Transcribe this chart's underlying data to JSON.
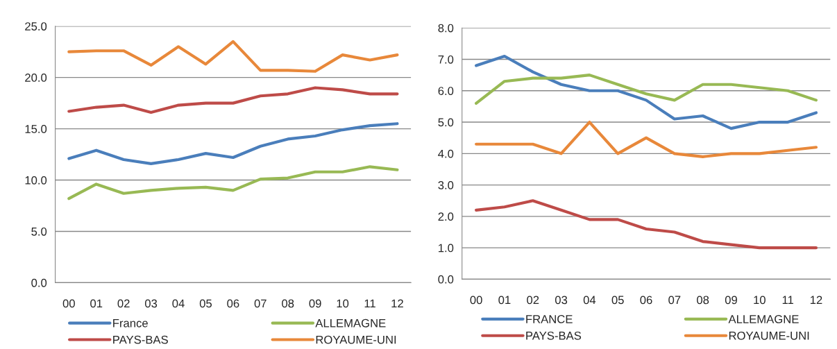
{
  "chart_data": [
    {
      "type": "line",
      "categories": [
        "00",
        "01",
        "02",
        "03",
        "04",
        "05",
        "06",
        "07",
        "08",
        "09",
        "10",
        "11",
        "12"
      ],
      "series": [
        {
          "name": "France",
          "color": "#4a7ebb",
          "values": [
            12.1,
            12.9,
            12.0,
            11.6,
            12.0,
            12.6,
            12.2,
            13.3,
            14.0,
            14.3,
            14.9,
            15.3,
            15.5
          ]
        },
        {
          "name": "PAYS-BAS",
          "color": "#be4b48",
          "values": [
            16.7,
            17.1,
            17.3,
            16.6,
            17.3,
            17.5,
            17.5,
            18.2,
            18.4,
            19.0,
            18.8,
            18.4,
            18.4
          ]
        },
        {
          "name": "ALLEMAGNE",
          "color": "#98b954",
          "values": [
            8.2,
            9.6,
            8.7,
            9.0,
            9.2,
            9.3,
            9.0,
            10.1,
            10.2,
            10.8,
            10.8,
            11.3,
            11.0
          ]
        },
        {
          "name": "ROYAUME-UNI",
          "color": "#e8883a",
          "values": [
            22.5,
            22.6,
            22.6,
            21.2,
            23.0,
            21.3,
            23.5,
            20.7,
            20.7,
            20.6,
            22.2,
            21.7,
            22.2
          ]
        }
      ],
      "ylim": [
        0,
        25
      ],
      "yticks": [
        {
          "value": 0,
          "label": "0.0"
        },
        {
          "value": 5,
          "label": "5.0"
        },
        {
          "value": 10,
          "label": "10.0"
        },
        {
          "value": 15,
          "label": "15.0"
        },
        {
          "value": 20,
          "label": "20.0"
        },
        {
          "value": 25,
          "label": "25.0"
        }
      ],
      "grid": "y",
      "legend": "bottom",
      "line_style": "solid"
    },
    {
      "type": "line",
      "categories": [
        "00",
        "01",
        "02",
        "03",
        "04",
        "05",
        "06",
        "07",
        "08",
        "09",
        "10",
        "11",
        "12"
      ],
      "series": [
        {
          "name": "FRANCE",
          "color": "#4a7ebb",
          "values": [
            6.8,
            7.1,
            6.6,
            6.2,
            6.0,
            6.0,
            5.7,
            5.1,
            5.2,
            4.8,
            5.0,
            5.0,
            5.3
          ]
        },
        {
          "name": "PAYS-BAS",
          "color": "#be4b48",
          "values": [
            2.2,
            2.3,
            2.5,
            2.2,
            1.9,
            1.9,
            1.6,
            1.5,
            1.2,
            1.1,
            1.0,
            1.0,
            1.0
          ]
        },
        {
          "name": "ALLEMAGNE",
          "color": "#98b954",
          "values": [
            5.6,
            6.3,
            6.4,
            6.4,
            6.5,
            6.2,
            5.9,
            5.7,
            6.2,
            6.2,
            6.1,
            6.0,
            5.7
          ]
        },
        {
          "name": "ROYAUME-UNI",
          "color": "#e8883a",
          "values": [
            4.3,
            4.3,
            4.3,
            4.0,
            5.0,
            4.0,
            4.5,
            4.0,
            3.9,
            4.0,
            4.0,
            4.1,
            4.2
          ]
        }
      ],
      "ylim": [
        0,
        8
      ],
      "yticks": [
        {
          "value": 0,
          "label": "0.0"
        },
        {
          "value": 1,
          "label": "1.0"
        },
        {
          "value": 2,
          "label": "2.0"
        },
        {
          "value": 3,
          "label": "3.0"
        },
        {
          "value": 4,
          "label": "4.0"
        },
        {
          "value": 5,
          "label": "5.0"
        },
        {
          "value": 6,
          "label": "6.0"
        },
        {
          "value": 7,
          "label": "7.0"
        },
        {
          "value": 8,
          "label": "8.0"
        }
      ],
      "grid": "y",
      "legend": "bottom",
      "line_style": "solid"
    }
  ]
}
